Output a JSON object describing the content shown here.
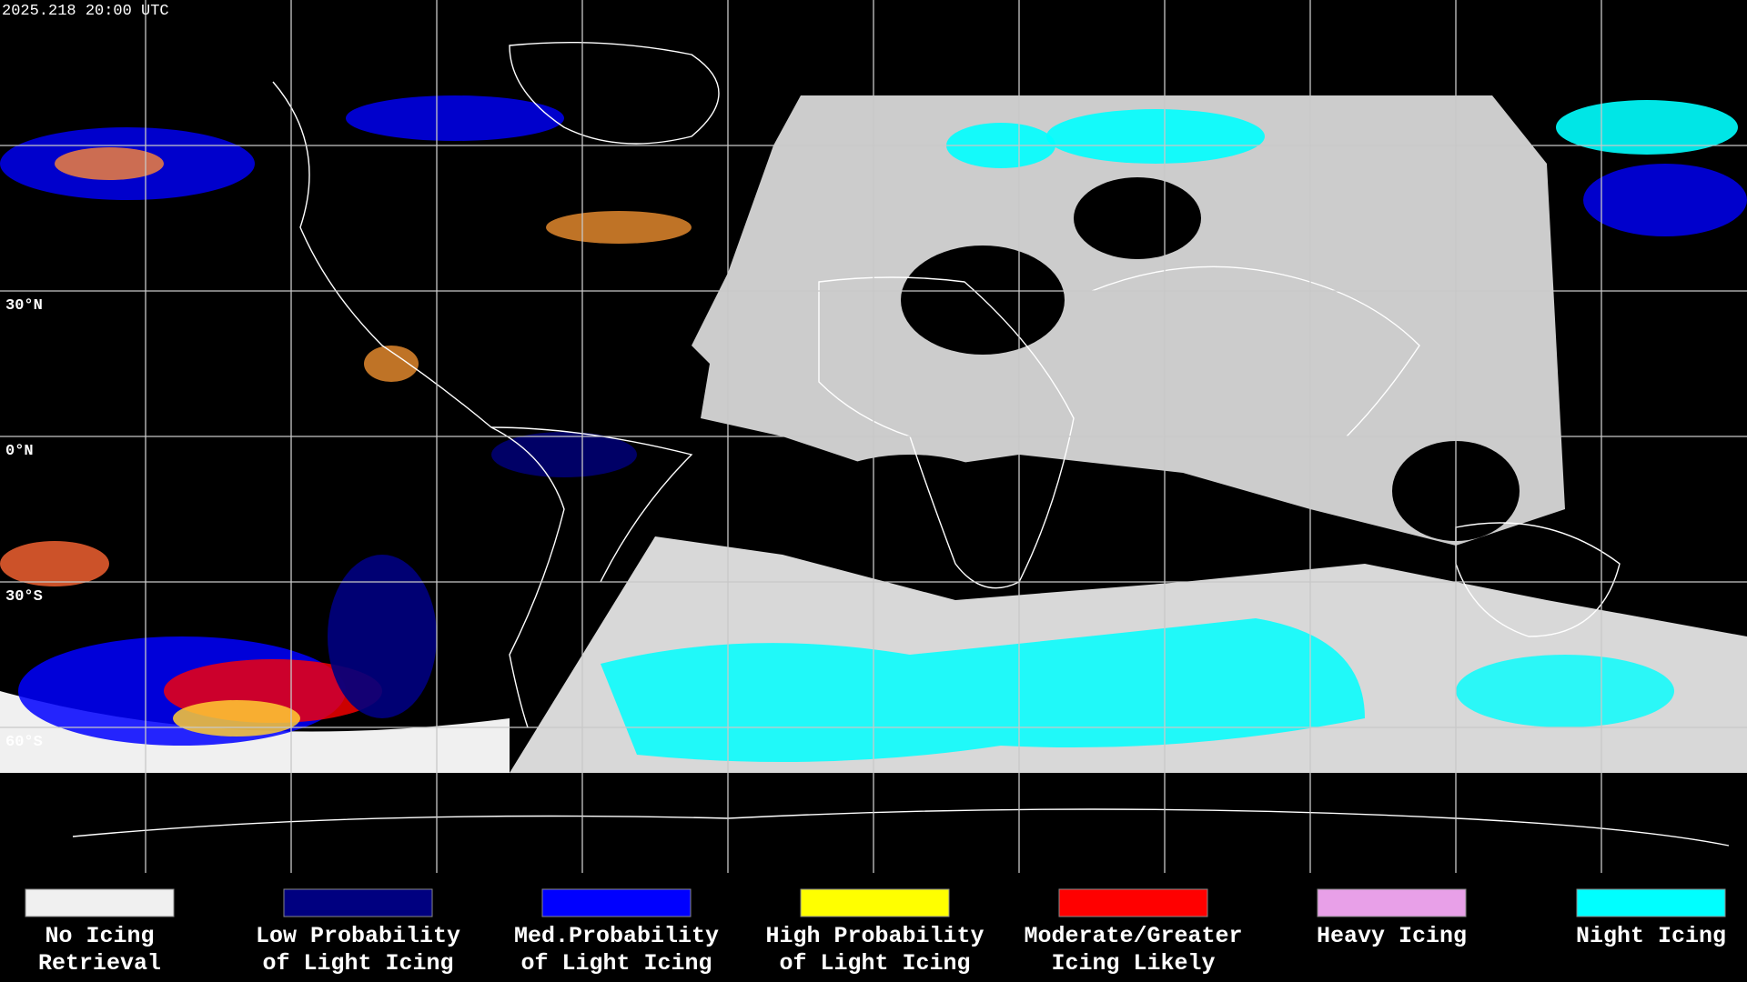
{
  "header": {
    "timestamp": "2025.218 20:00 UTC"
  },
  "latitude_labels": [
    "30°N",
    "0°N",
    "30°S",
    "60°S"
  ],
  "legend": [
    {
      "color": "#f0f0f0",
      "lines": [
        "No Icing",
        "Retrieval"
      ]
    },
    {
      "color": "#000080",
      "lines": [
        "Low Probability",
        "of Light Icing"
      ]
    },
    {
      "color": "#0000ff",
      "lines": [
        "Med.Probability",
        "of Light Icing"
      ]
    },
    {
      "color": "#ffff00",
      "lines": [
        "High Probability",
        "of Light Icing"
      ]
    },
    {
      "color": "#ff0000",
      "lines": [
        "Moderate/Greater",
        "Icing Likely"
      ]
    },
    {
      "color": "#e8a0e8",
      "lines": [
        "Heavy Icing"
      ]
    },
    {
      "color": "#00ffff",
      "lines": [
        "Night Icing"
      ]
    }
  ]
}
